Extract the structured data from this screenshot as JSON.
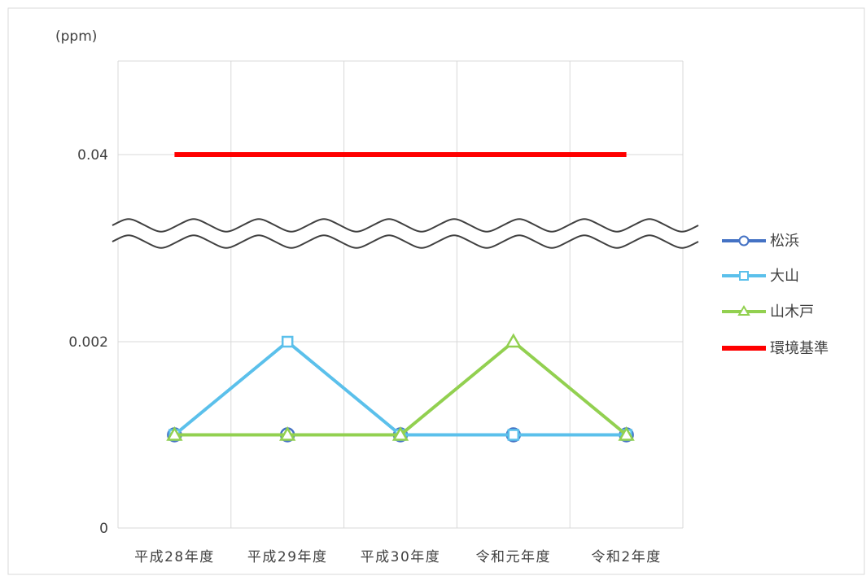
{
  "chart_data": {
    "type": "line",
    "unit_label": "(ppm)",
    "categories": [
      "平成28年度",
      "平成29年度",
      "平成30年度",
      "令和元年度",
      "令和2年度"
    ],
    "y_ticks_upper": [
      "0.04"
    ],
    "y_ticks_lower": [
      "0.002",
      "0"
    ],
    "axis_break": true,
    "ylim_lower": [
      0,
      0.004
    ],
    "grid": true,
    "legend_position": "right",
    "series": [
      {
        "name": "松浜",
        "values": [
          0.001,
          0.001,
          0.001,
          0.001,
          0.001
        ],
        "color": "#4472C4",
        "marker": "circle"
      },
      {
        "name": "大山",
        "values": [
          0.001,
          0.002,
          0.001,
          0.001,
          0.001
        ],
        "color": "#5BC0EB",
        "marker": "square"
      },
      {
        "name": "山木戸",
        "values": [
          0.001,
          0.001,
          0.001,
          0.002,
          0.001
        ],
        "color": "#92D050",
        "marker": "triangle"
      },
      {
        "name": "環境基準",
        "values": [
          0.04,
          0.04,
          0.04,
          0.04,
          0.04
        ],
        "color": "#FF0000",
        "marker": "none"
      }
    ]
  }
}
